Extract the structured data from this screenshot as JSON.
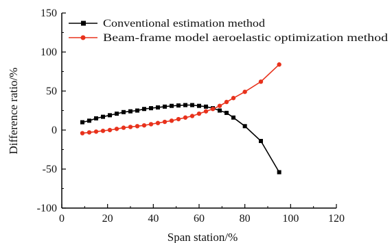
{
  "chart_data": {
    "type": "line",
    "xlabel": "Span station/%",
    "ylabel": "Difference ratio/%",
    "xlim": [
      0,
      120
    ],
    "ylim": [
      -100,
      150
    ],
    "xticks": [
      0,
      20,
      40,
      60,
      80,
      100,
      120
    ],
    "yticks": [
      -100,
      -50,
      0,
      50,
      100,
      150
    ],
    "grid": false,
    "legend_position": "top",
    "series": [
      {
        "name": "Conventional estimation method",
        "color": "#000000",
        "marker": "square",
        "x": [
          9,
          12,
          15,
          18,
          21,
          24,
          27,
          30,
          33,
          36,
          39,
          42,
          45,
          48,
          51,
          54,
          57,
          60,
          63,
          66,
          69,
          72,
          75,
          80,
          87,
          95
        ],
        "y": [
          10,
          12,
          15,
          17,
          19,
          21,
          23,
          24,
          25,
          27,
          28,
          29,
          30,
          31,
          31.5,
          32,
          32,
          31,
          30,
          28,
          25,
          22,
          16,
          5,
          -14,
          -54
        ]
      },
      {
        "name": "Beam-frame model aeroelastic optimization method",
        "color": "#e8321c",
        "marker": "circle",
        "x": [
          9,
          12,
          15,
          18,
          21,
          24,
          27,
          30,
          33,
          36,
          39,
          42,
          45,
          48,
          51,
          54,
          57,
          60,
          63,
          66,
          69,
          72,
          75,
          80,
          87,
          95
        ],
        "y": [
          -4,
          -3,
          -2,
          -1,
          0,
          1.5,
          3,
          4,
          5,
          6,
          7.5,
          9,
          10.5,
          12,
          14,
          16,
          18,
          21,
          24,
          27,
          31,
          36,
          41,
          49,
          62,
          84
        ]
      }
    ]
  }
}
